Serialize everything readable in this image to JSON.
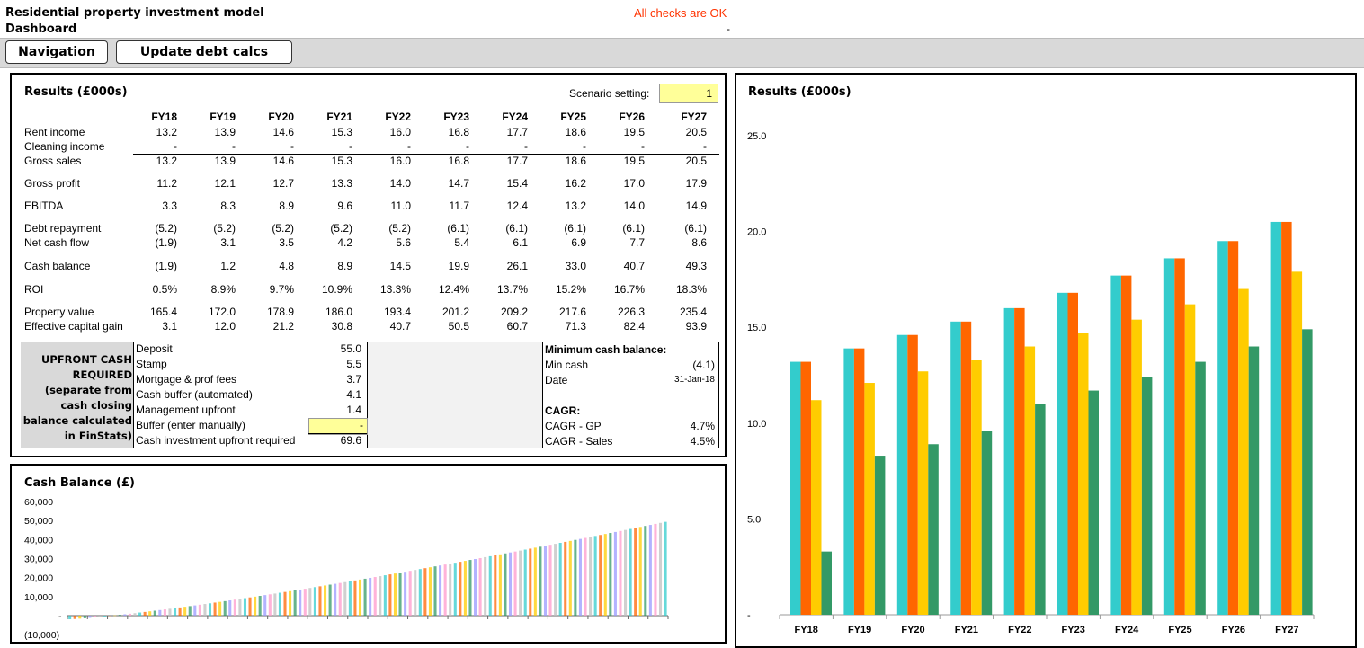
{
  "header": {
    "title": "Residential property investment model",
    "subtitle": "Dashboard",
    "check_status": "All checks are OK",
    "check_dash": "-",
    "check_color": "#ff3300"
  },
  "ribbon": {
    "nav_button": "Navigation",
    "update_button": "Update debt calcs"
  },
  "results": {
    "title": "Results (£000s)",
    "scenario_label": "Scenario setting:",
    "scenario_value": "1",
    "years": [
      "FY18",
      "FY19",
      "FY20",
      "FY21",
      "FY22",
      "FY23",
      "FY24",
      "FY25",
      "FY26",
      "FY27"
    ],
    "rows": [
      {
        "label": "Rent income",
        "values": [
          "13.2",
          "13.9",
          "14.6",
          "15.3",
          "16.0",
          "16.8",
          "17.7",
          "18.6",
          "19.5",
          "20.5"
        ]
      },
      {
        "label": "Cleaning income",
        "values": [
          "-",
          "-",
          "-",
          "-",
          "-",
          "-",
          "-",
          "-",
          "-",
          "-"
        ]
      },
      {
        "label": "Gross sales",
        "values": [
          "13.2",
          "13.9",
          "14.6",
          "15.3",
          "16.0",
          "16.8",
          "17.7",
          "18.6",
          "19.5",
          "20.5"
        ]
      },
      {
        "label": "Gross profit",
        "values": [
          "11.2",
          "12.1",
          "12.7",
          "13.3",
          "14.0",
          "14.7",
          "15.4",
          "16.2",
          "17.0",
          "17.9"
        ]
      },
      {
        "label": "EBITDA",
        "values": [
          "3.3",
          "8.3",
          "8.9",
          "9.6",
          "11.0",
          "11.7",
          "12.4",
          "13.2",
          "14.0",
          "14.9"
        ]
      },
      {
        "label": "Debt repayment",
        "values": [
          "(5.2)",
          "(5.2)",
          "(5.2)",
          "(5.2)",
          "(5.2)",
          "(6.1)",
          "(6.1)",
          "(6.1)",
          "(6.1)",
          "(6.1)"
        ]
      },
      {
        "label": "Net cash flow",
        "values": [
          "(1.9)",
          "3.1",
          "3.5",
          "4.2",
          "5.6",
          "5.4",
          "6.1",
          "6.9",
          "7.7",
          "8.6"
        ]
      },
      {
        "label": "Cash balance",
        "values": [
          "(1.9)",
          "1.2",
          "4.8",
          "8.9",
          "14.5",
          "19.9",
          "26.1",
          "33.0",
          "40.7",
          "49.3"
        ]
      },
      {
        "label": "ROI",
        "values": [
          "0.5%",
          "8.9%",
          "9.7%",
          "10.9%",
          "13.3%",
          "12.4%",
          "13.7%",
          "15.2%",
          "16.7%",
          "18.3%"
        ]
      },
      {
        "label": "Property value",
        "values": [
          "165.4",
          "172.0",
          "178.9",
          "186.0",
          "193.4",
          "201.2",
          "209.2",
          "217.6",
          "226.3",
          "235.4"
        ]
      },
      {
        "label": "Effective capital gain",
        "values": [
          "3.1",
          "12.0",
          "21.2",
          "30.8",
          "40.7",
          "50.5",
          "60.7",
          "71.3",
          "82.4",
          "93.9"
        ]
      }
    ],
    "upfront_title": "UPFRONT CASH REQUIRED (separate from cash closing balance calculated in FinStats)",
    "upfront_lines": [
      "UPFRONT CASH",
      "REQUIRED",
      "(separate from",
      "cash closing",
      "balance calculated",
      "in FinStats)"
    ],
    "upfront_items": [
      {
        "label": "Deposit",
        "value": "55.0"
      },
      {
        "label": "Stamp",
        "value": "5.5"
      },
      {
        "label": "Mortgage & prof fees",
        "value": "3.7"
      },
      {
        "label": "Cash buffer (automated)",
        "value": "4.1"
      },
      {
        "label": "Management upfront",
        "value": "1.4"
      },
      {
        "label": "Buffer (enter manually)",
        "value": "-"
      },
      {
        "label": "Cash investment upfront required",
        "value": "69.6"
      }
    ],
    "min_cash_title": "Minimum cash balance:",
    "min_cash_label": "Min cash",
    "min_cash_value": "(4.1)",
    "date_label": "Date",
    "date_value": "31-Jan-18",
    "cagr_title": "CAGR:",
    "cagr_gp_label": "CAGR - GP",
    "cagr_gp_value": "4.7%",
    "cagr_sales_label": "CAGR - Sales",
    "cagr_sales_value": "4.5%",
    "input_color": "#ffff99"
  },
  "cash_chart_panel": {
    "title": "Cash Balance (£)"
  },
  "results_chart_panel": {
    "title": "Results (£000s)"
  },
  "chart_data": [
    {
      "type": "bar",
      "title": "Results (£000s)",
      "categories": [
        "FY18",
        "FY19",
        "FY20",
        "FY21",
        "FY22",
        "FY23",
        "FY24",
        "FY25",
        "FY26",
        "FY27"
      ],
      "series": [
        {
          "values": [
            13.2,
            13.9,
            14.6,
            15.3,
            16.0,
            16.8,
            17.7,
            18.6,
            19.5,
            20.5
          ],
          "color": "#33cccc"
        },
        {
          "values": [
            13.2,
            13.9,
            14.6,
            15.3,
            16.0,
            16.8,
            17.7,
            18.6,
            19.5,
            20.5
          ],
          "color": "#ff6600"
        },
        {
          "values": [
            11.2,
            12.1,
            12.7,
            13.3,
            14.0,
            14.7,
            15.4,
            16.2,
            17.0,
            17.9
          ],
          "color": "#ffcc00"
        },
        {
          "values": [
            3.3,
            8.3,
            8.9,
            9.6,
            11.0,
            11.7,
            12.4,
            13.2,
            14.0,
            14.9
          ],
          "color": "#339966"
        }
      ],
      "yticks": [
        "-",
        "5.0",
        "10.0",
        "15.0",
        "20.0",
        "25.0"
      ],
      "ylim": [
        0,
        25
      ],
      "grid": false
    },
    {
      "type": "bar",
      "title": "Cash Balance (£)",
      "yticks": [
        "(10,000)",
        "-",
        "10,000",
        "20,000",
        "30,000",
        "40,000",
        "50,000",
        "60,000"
      ],
      "ylim": [
        -10000,
        60000
      ],
      "start": -1900,
      "end": 49300,
      "count": 120,
      "colors": [
        "#33cccc",
        "#ff6600",
        "#ffcc00",
        "#339966",
        "#9999ff",
        "#ff99cc",
        "#c0c0c0"
      ]
    }
  ]
}
